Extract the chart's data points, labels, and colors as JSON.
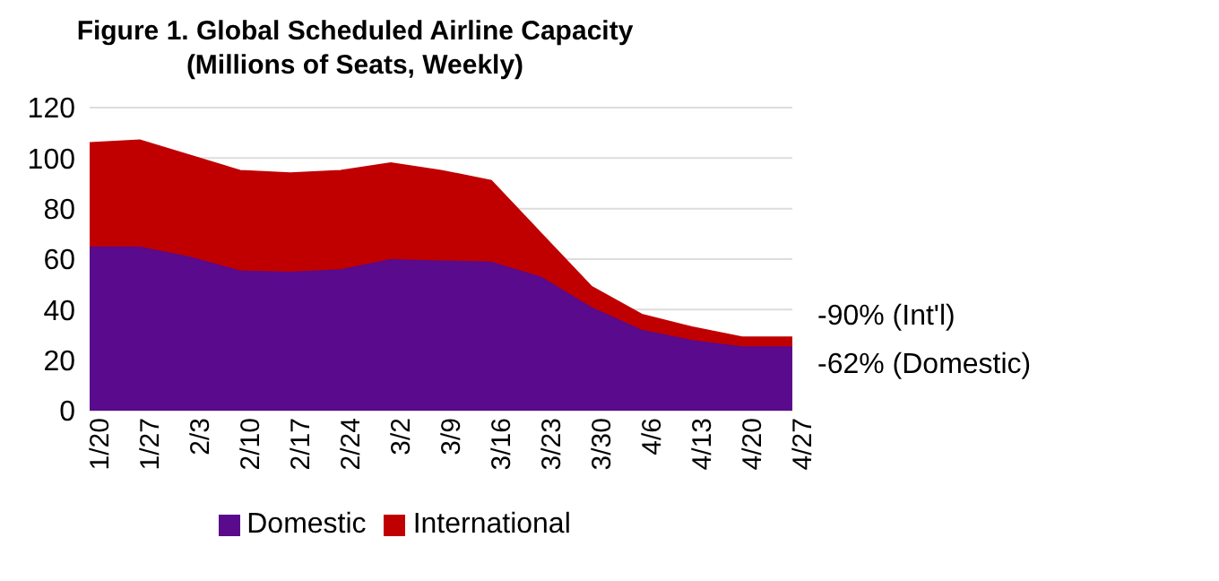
{
  "chart_data": {
    "type": "area",
    "title": "Figure 1. Global Scheduled Airline Capacity\n(Millions of Seats, Weekly)",
    "stacked": true,
    "categories": [
      "1/20",
      "1/27",
      "2/3",
      "2/10",
      "2/17",
      "2/24",
      "3/2",
      "3/9",
      "3/16",
      "3/23",
      "3/30",
      "4/6",
      "4/13",
      "4/20",
      "4/27"
    ],
    "series": [
      {
        "name": "Domestic",
        "color": "#5a0a8c",
        "values": [
          65,
          65,
          61,
          55.5,
          55,
          56,
          60,
          59.5,
          59,
          53,
          41,
          32,
          28,
          25.5,
          25.5
        ]
      },
      {
        "name": "International",
        "color": "#c00000",
        "values": [
          41,
          42,
          40,
          39.5,
          39,
          39,
          38,
          35.5,
          32,
          17,
          8,
          6,
          5,
          3.5,
          3.5
        ]
      }
    ],
    "ylim": [
      0,
      120
    ],
    "yticks": [
      0,
      20,
      40,
      60,
      80,
      100,
      120
    ],
    "grid": "y",
    "legend": "bottom",
    "annotations": [
      "-90% (Int'l)",
      "-62% (Domestic)"
    ]
  }
}
